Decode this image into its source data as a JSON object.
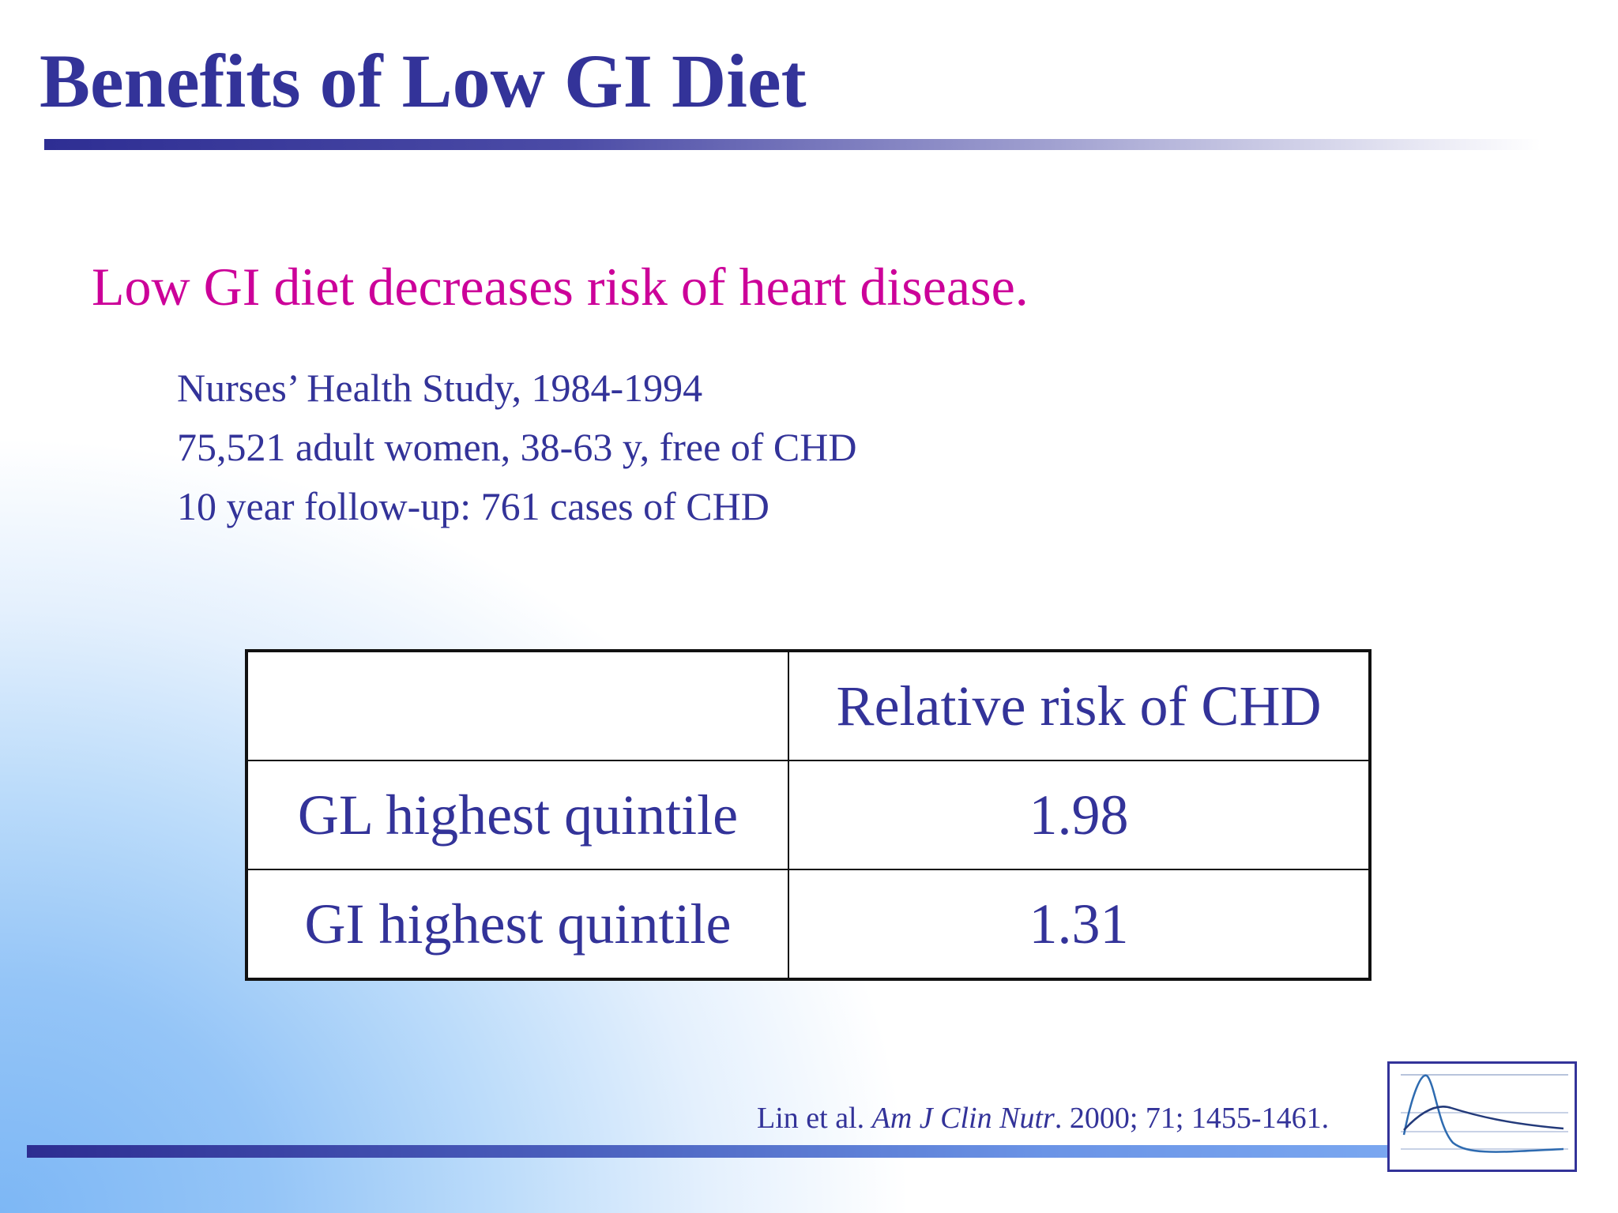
{
  "slide": {
    "title": "Benefits of Low GI Diet",
    "subtitle": "Low GI diet decreases risk of heart disease.",
    "study_lines": [
      "Nurses’ Health Study, 1984-1994",
      "75,521 adult women, 38-63 y, free of CHD",
      "10 year follow-up: 761 cases of CHD"
    ]
  },
  "table": {
    "header": [
      "",
      "Relative risk of CHD"
    ],
    "rows": [
      {
        "label": "GL highest quintile",
        "value": "1.98"
      },
      {
        "label": "GI highest quintile",
        "value": "1.31"
      }
    ]
  },
  "citation": {
    "authors": "Lin et al.",
    "journal": "Am J Clin Nutr",
    "details": ". 2000; 71; 1455-1461."
  },
  "colors": {
    "title": "#333399",
    "subtitle": "#cc0099",
    "body_text": "#333399"
  },
  "icons": {
    "logo": "glycemic-response-curve-icon"
  }
}
